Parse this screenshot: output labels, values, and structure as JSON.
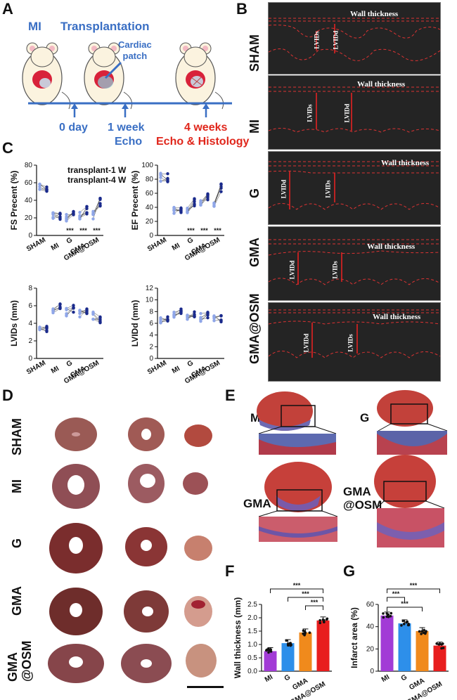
{
  "panels": {
    "A": "A",
    "B": "B",
    "C": "C",
    "D": "D",
    "E": "E",
    "F": "F",
    "G": "G"
  },
  "panelA": {
    "mi": "MI",
    "transplantation": "Transplantation",
    "cardiac_patch": "Cardiac\npatch",
    "day0": "0 day",
    "week1": "1 week",
    "echo": "Echo",
    "weeks4": "4 weeks",
    "echo_hist": "Echo & Histology"
  },
  "panelB": {
    "rows": [
      "SHAM",
      "MI",
      "G",
      "GMA",
      "GMA@OSM"
    ],
    "wall_thickness": "Wall thickness",
    "lvids": "LVIDs",
    "lvidd": "LVIDd"
  },
  "panelC": {
    "legend": [
      "transplant-1 W",
      "transplant-4 W"
    ],
    "categories": [
      "SHAM",
      "MI",
      "G",
      "GMA",
      "GMA@OSM"
    ],
    "sig": "***",
    "colors": {
      "w1": "#8fa6e8",
      "w4": "#1a2a8c"
    }
  },
  "panelD": {
    "rows": [
      "SHAM",
      "MI",
      "G",
      "GMA",
      "GMA\n@OSM"
    ]
  },
  "panelE": {
    "labels": [
      "MI",
      "G",
      "GMA",
      "GMA\n@OSM"
    ]
  },
  "chart_data": [
    {
      "type": "scatter",
      "ylabel": "FS Precent (%)",
      "categories": [
        "SHAM",
        "MI",
        "G",
        "GMA",
        "GMA@OSM"
      ],
      "ylim": [
        0,
        80
      ],
      "yticks": [
        0,
        20,
        40,
        60,
        80
      ],
      "series": [
        {
          "name": "transplant-1 W",
          "values": [
            54,
            22,
            21,
            22,
            23
          ]
        },
        {
          "name": "transplant-4 W",
          "values": [
            53,
            23,
            25,
            29,
            38
          ]
        }
      ],
      "annotations": [
        "",
        "",
        "***",
        "***",
        "***"
      ]
    },
    {
      "type": "scatter",
      "ylabel": "EF Precent (%)",
      "categories": [
        "SHAM",
        "MI",
        "G",
        "GMA",
        "GMA@OSM"
      ],
      "ylim": [
        0,
        100
      ],
      "yticks": [
        0,
        20,
        40,
        60,
        80,
        100
      ],
      "series": [
        {
          "name": "transplant-1 W",
          "values": [
            83,
            36,
            38,
            44,
            45
          ]
        },
        {
          "name": "transplant-4 W",
          "values": [
            82,
            38,
            48,
            55,
            68
          ]
        }
      ],
      "annotations": [
        "",
        "",
        "***",
        "***",
        "***"
      ]
    },
    {
      "type": "scatter",
      "ylabel": "LVIDs (mm)",
      "categories": [
        "SHAM",
        "MI",
        "G",
        "GMA",
        "GMA@OSM"
      ],
      "ylim": [
        0,
        8
      ],
      "yticks": [
        0,
        2,
        4,
        6,
        8
      ],
      "series": [
        {
          "name": "transplant-1 W",
          "values": [
            3.1,
            5.2,
            5.3,
            5.2,
            4.8
          ]
        },
        {
          "name": "transplant-4 W",
          "values": [
            3.3,
            5.8,
            5.6,
            5.5,
            4.3
          ]
        }
      ],
      "annotations": [
        "",
        "",
        "",
        "",
        ""
      ]
    },
    {
      "type": "scatter",
      "ylabel": "LVIDd (mm)",
      "categories": [
        "SHAM",
        "MI",
        "G",
        "GMA",
        "GMA@OSM"
      ],
      "ylim": [
        0,
        12
      ],
      "yticks": [
        0,
        2,
        4,
        6,
        8,
        10,
        12
      ],
      "series": [
        {
          "name": "transplant-1 W",
          "values": [
            6.3,
            7.2,
            7.2,
            7.0,
            6.8
          ]
        },
        {
          "name": "transplant-4 W",
          "values": [
            6.6,
            8.0,
            7.6,
            7.4,
            6.6
          ]
        }
      ],
      "annotations": [
        "",
        "",
        "",
        "",
        ""
      ]
    },
    {
      "type": "bar",
      "ylabel": "Wall thickness (mm)",
      "categories": [
        "MI",
        "G",
        "GMA",
        "GMA@OSM"
      ],
      "values": [
        0.75,
        1.05,
        1.45,
        1.9
      ],
      "ylim": [
        0,
        2.5
      ],
      "yticks": [
        0.0,
        0.5,
        1.0,
        1.5,
        2.0,
        2.5
      ],
      "colors": [
        "#a23bd6",
        "#2d8fea",
        "#f08a1c",
        "#e81e1e"
      ],
      "sig": [
        "***",
        "***",
        "***"
      ]
    },
    {
      "type": "bar",
      "ylabel": "Infarct area (%)",
      "categories": [
        "MI",
        "G",
        "GMA",
        "GMA@OSM"
      ],
      "values": [
        50,
        43,
        36,
        23
      ],
      "ylim": [
        0,
        60
      ],
      "yticks": [
        0,
        20,
        40,
        60
      ],
      "colors": [
        "#a23bd6",
        "#2d8fea",
        "#f08a1c",
        "#e81e1e"
      ],
      "sig": [
        "***",
        "***",
        "***"
      ]
    }
  ]
}
